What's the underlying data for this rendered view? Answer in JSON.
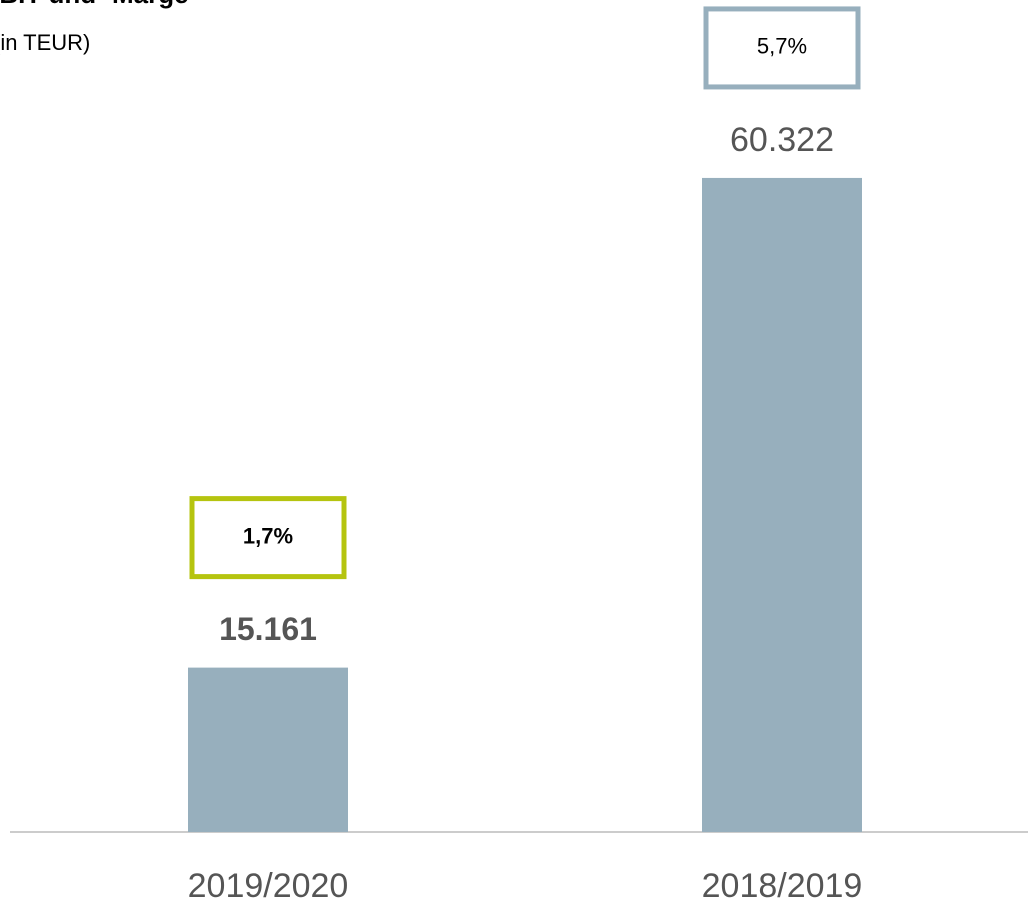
{
  "chart_data": {
    "type": "bar",
    "title": "EBIT und -Marge",
    "subtitle": "(in TEUR)",
    "categories": [
      "2019/2020",
      "2018/2019"
    ],
    "values": [
      15161,
      60322
    ],
    "value_labels": [
      "15.161",
      "60.322"
    ],
    "color": "#97afbd",
    "margins": {
      "values": [
        1.7,
        5.7
      ],
      "value_labels": [
        "1,7%",
        "5,7%"
      ],
      "colors": [
        "#b5c40f",
        "#97afbd"
      ]
    },
    "ylim": [
      0,
      70000
    ]
  }
}
